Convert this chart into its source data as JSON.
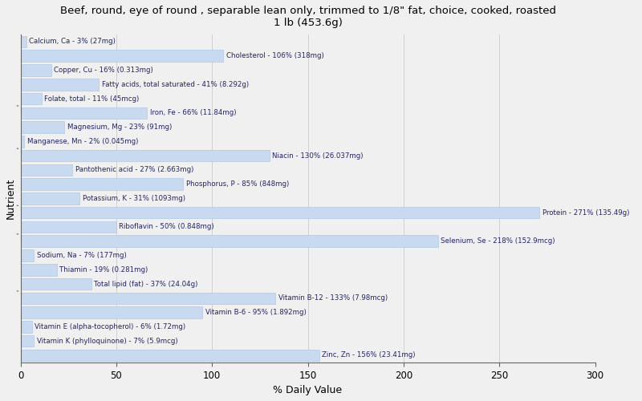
{
  "title": "Beef, round, eye of round , separable lean only, trimmed to 1/8\" fat, choice, cooked, roasted\n1 lb (453.6g)",
  "xlabel": "% Daily Value",
  "ylabel": "Nutrient",
  "xlim": [
    0,
    300
  ],
  "xticks": [
    0,
    50,
    100,
    150,
    200,
    250,
    300
  ],
  "background_color": "#f0f0f0",
  "bar_color": "#c8daef",
  "bar_edge_color": "#a8c0e0",
  "nutrients": [
    {
      "label": "Calcium, Ca - 3% (27mg)",
      "value": 3
    },
    {
      "label": "Cholesterol - 106% (318mg)",
      "value": 106
    },
    {
      "label": "Copper, Cu - 16% (0.313mg)",
      "value": 16
    },
    {
      "label": "Fatty acids, total saturated - 41% (8.292g)",
      "value": 41
    },
    {
      "label": "Folate, total - 11% (45mcg)",
      "value": 11
    },
    {
      "label": "Iron, Fe - 66% (11.84mg)",
      "value": 66
    },
    {
      "label": "Magnesium, Mg - 23% (91mg)",
      "value": 23
    },
    {
      "label": "Manganese, Mn - 2% (0.045mg)",
      "value": 2
    },
    {
      "label": "Niacin - 130% (26.037mg)",
      "value": 130
    },
    {
      "label": "Pantothenic acid - 27% (2.663mg)",
      "value": 27
    },
    {
      "label": "Phosphorus, P - 85% (848mg)",
      "value": 85
    },
    {
      "label": "Potassium, K - 31% (1093mg)",
      "value": 31
    },
    {
      "label": "Protein - 271% (135.49g)",
      "value": 271
    },
    {
      "label": "Riboflavin - 50% (0.848mg)",
      "value": 50
    },
    {
      "label": "Selenium, Se - 218% (152.9mcg)",
      "value": 218
    },
    {
      "label": "Sodium, Na - 7% (177mg)",
      "value": 7
    },
    {
      "label": "Thiamin - 19% (0.281mg)",
      "value": 19
    },
    {
      "label": "Total lipid (fat) - 37% (24.04g)",
      "value": 37
    },
    {
      "label": "Vitamin B-12 - 133% (7.98mcg)",
      "value": 133
    },
    {
      "label": "Vitamin B-6 - 95% (1.892mg)",
      "value": 95
    },
    {
      "label": "Vitamin E (alpha-tocopherol) - 6% (1.72mg)",
      "value": 6
    },
    {
      "label": "Vitamin K (phylloquinone) - 7% (5.9mcg)",
      "value": 7
    },
    {
      "label": "Zinc, Zn - 156% (23.41mg)",
      "value": 156
    }
  ],
  "group_separators_orig_idx": [
    4.5,
    8.5,
    12.5,
    14.5
  ],
  "tick_color": "#666666",
  "grid_color": "#d0d0d0",
  "text_color": "#222266"
}
